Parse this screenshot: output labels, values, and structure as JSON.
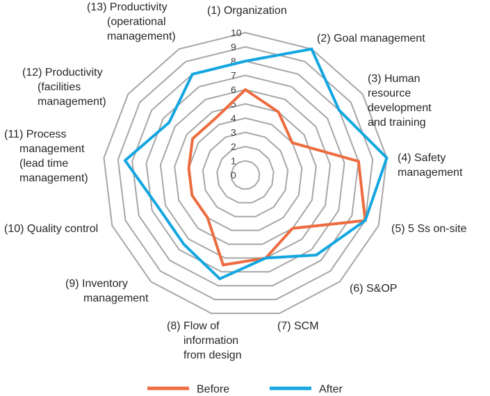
{
  "chart_data": {
    "type": "radar",
    "title": "",
    "rmin": 0,
    "rmax": 10,
    "ticks": [
      "0",
      "1",
      "2",
      "3",
      "4",
      "5",
      "6",
      "7",
      "8",
      "9",
      "10"
    ],
    "axes": [
      "(1) Organization",
      "(2) Goal management",
      "(3) Human resource development and training",
      "(4) Safety management",
      "(5) 5 Ss on-site",
      "(6) S&OP",
      "(7) SCM",
      "(8) Flow of information from design",
      "(9) Inventory management",
      "(10) Quality control",
      "(11) Process management (lead time management)",
      "(12) Productivity (facilities management)",
      "(13) Productivity (operational management)"
    ],
    "series": [
      {
        "name": "Before",
        "color": "#ed6c3f",
        "values": [
          6.0,
          5.0,
          4.0,
          8.0,
          9.0,
          5.0,
          6.0,
          6.5,
          4.0,
          4.0,
          4.0,
          4.5,
          4.5
        ]
      },
      {
        "name": "After",
        "color": "#14a6e1",
        "values": [
          8.0,
          10.0,
          8.0,
          10.0,
          9.0,
          7.5,
          6.0,
          7.5,
          6.5,
          6.5,
          8.5,
          6.5,
          8.0
        ]
      }
    ],
    "legend_position": "bottom"
  }
}
